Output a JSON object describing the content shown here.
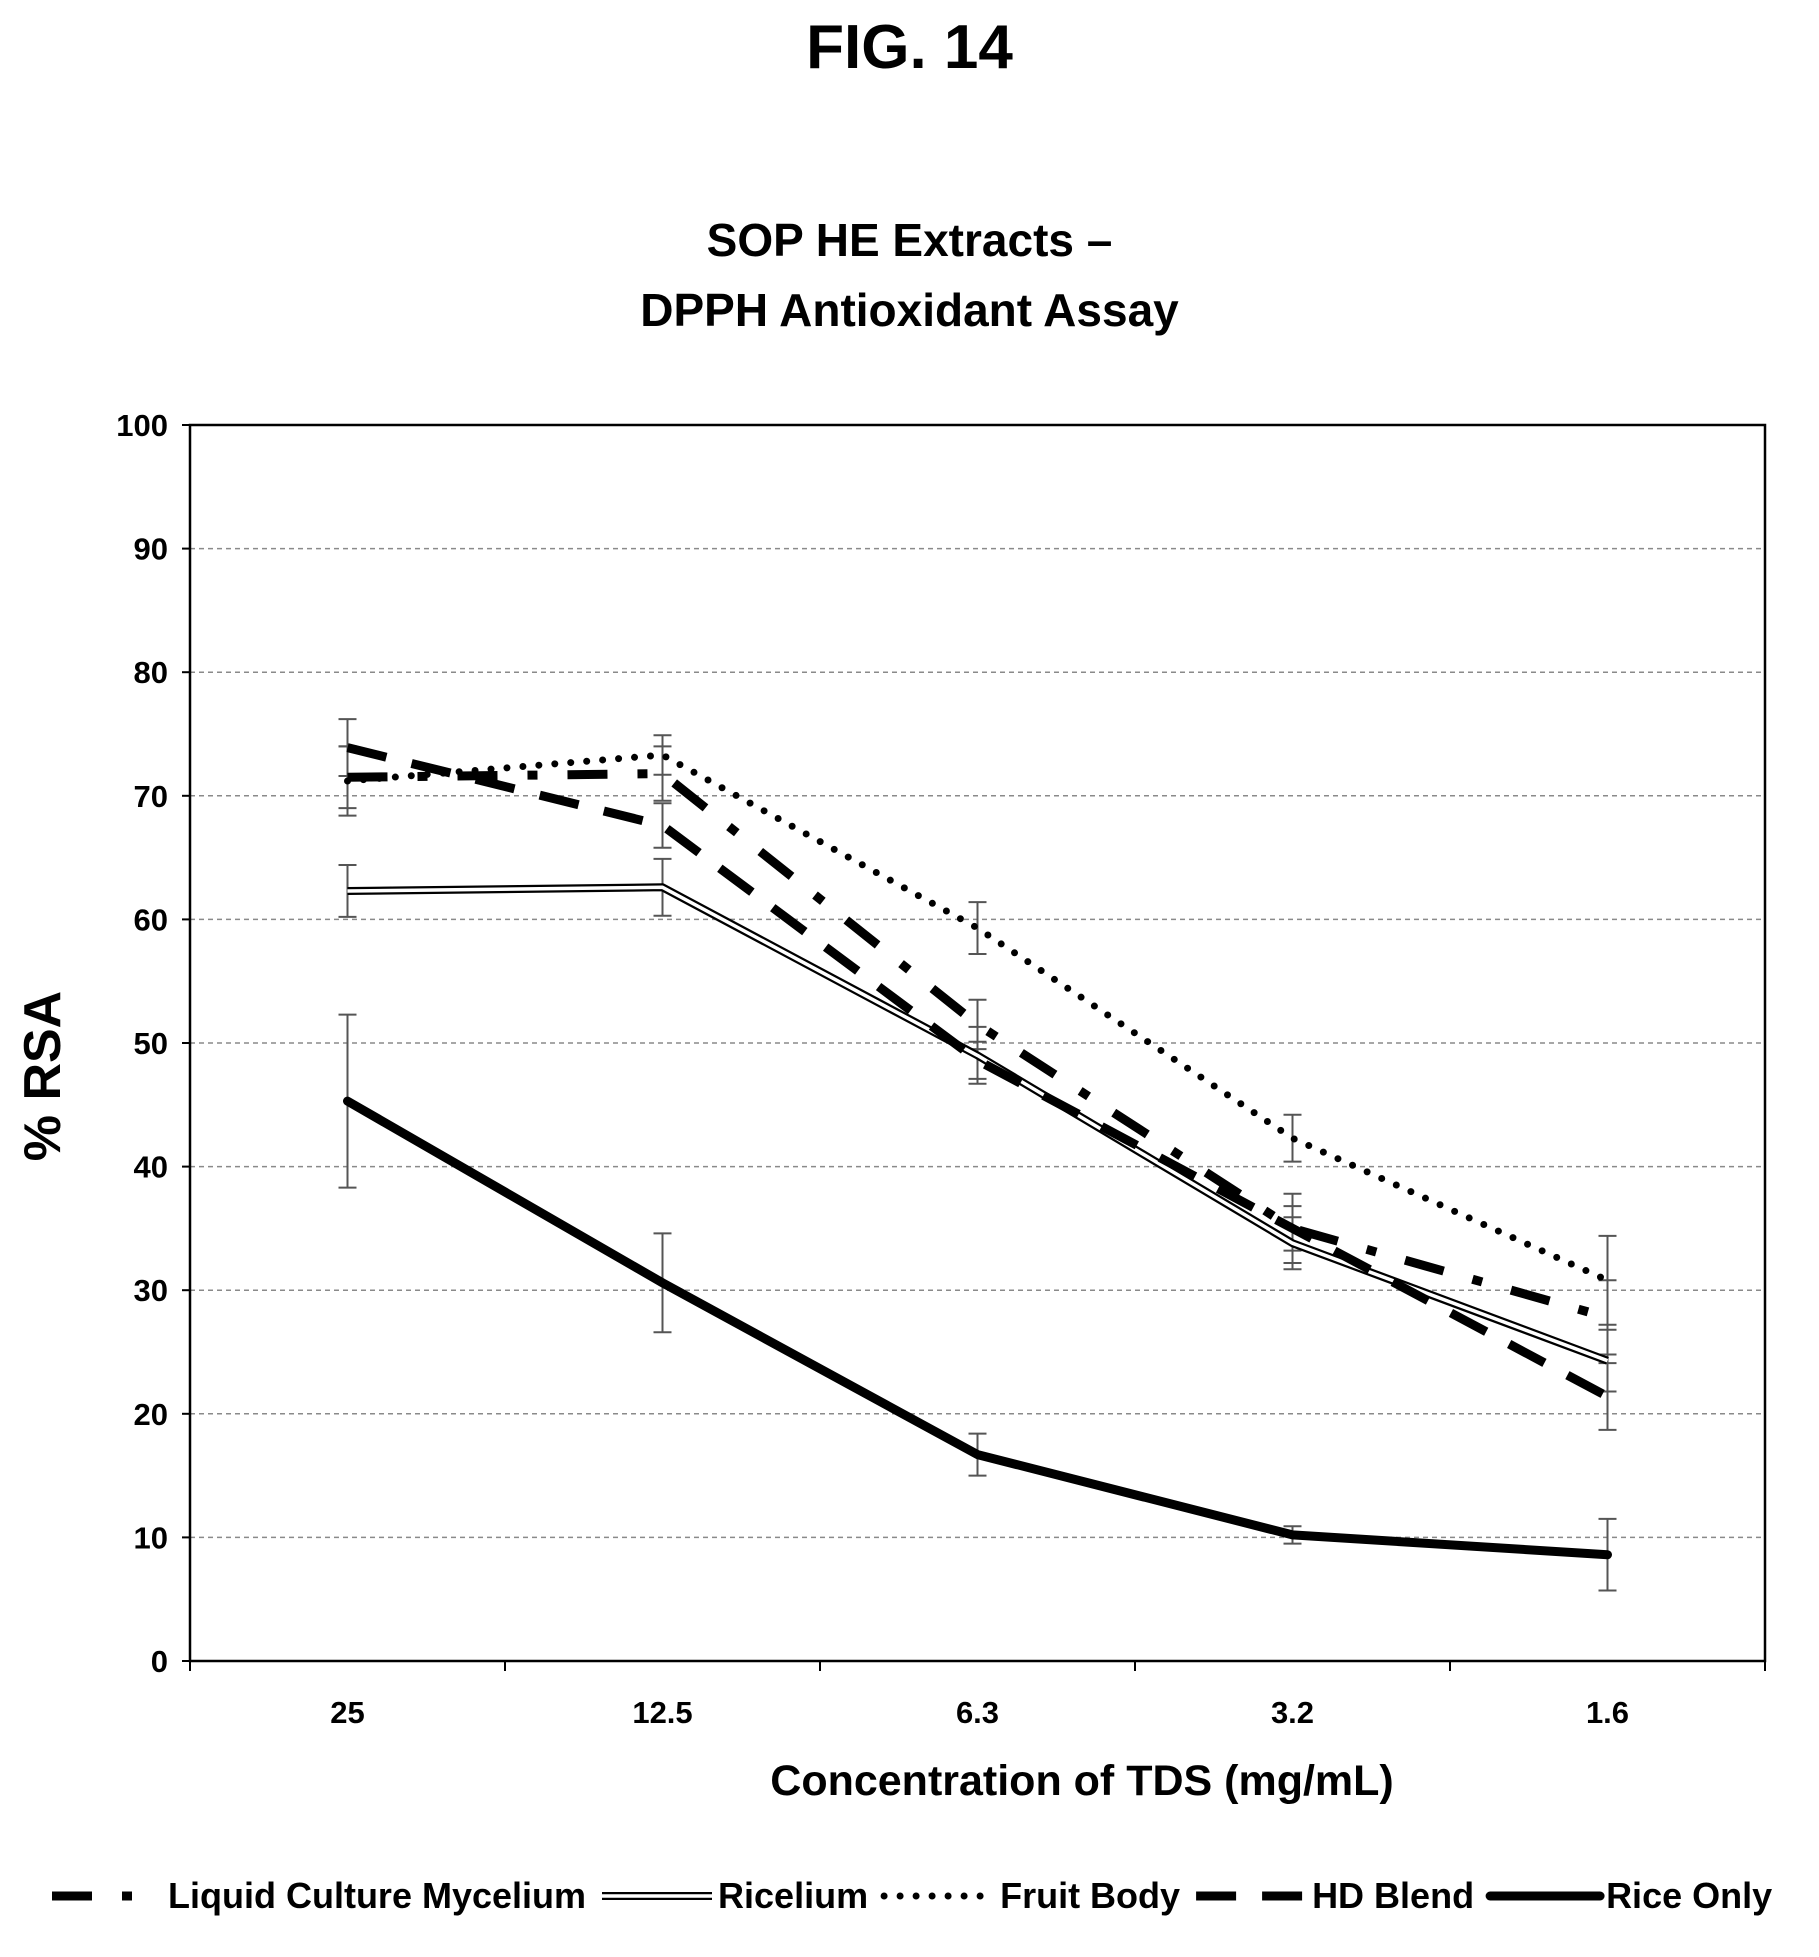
{
  "figure_label": "FIG. 14",
  "chart_data": {
    "type": "line",
    "title": [
      "SOP HE Extracts –",
      "DPPH Antioxidant Assay"
    ],
    "xlabel": "Concentration of TDS (mg/mL)",
    "ylabel": "% RSA",
    "categories": [
      "25",
      "12.5",
      "6.3",
      "3.2",
      "1.6"
    ],
    "ylim": [
      0,
      100
    ],
    "yticks": [
      0,
      10,
      20,
      30,
      40,
      50,
      60,
      70,
      80,
      90,
      100
    ],
    "grid": "horizontal dashed",
    "legend_position": "bottom",
    "series": [
      {
        "name": "Liquid Culture Mycelium",
        "style": "dash-dot",
        "values": [
          71.5,
          71.8,
          51.5,
          35.0,
          27.8
        ],
        "errors": [
          2.5,
          2.2,
          2.0,
          2.8,
          3.0
        ]
      },
      {
        "name": "Ricelium",
        "style": "double",
        "values": [
          62.3,
          62.6,
          49.0,
          33.8,
          24.3
        ],
        "errors": [
          2.1,
          2.3,
          2.3,
          2.1,
          2.5
        ]
      },
      {
        "name": "Fruit Body",
        "style": "dotted",
        "values": [
          71.2,
          73.3,
          59.3,
          42.3,
          30.8
        ],
        "errors": [
          2.8,
          1.6,
          2.1,
          1.9,
          3.6
        ]
      },
      {
        "name": "HD Blend",
        "style": "dashed",
        "values": [
          73.9,
          67.6,
          48.6,
          35.0,
          21.4
        ],
        "errors": [
          2.3,
          1.8,
          1.5,
          1.8,
          2.7
        ]
      },
      {
        "name": "Rice Only",
        "style": "solid-thick",
        "values": [
          45.3,
          30.6,
          16.7,
          10.2,
          8.6
        ],
        "errors": [
          7.0,
          4.0,
          1.7,
          0.7,
          2.9
        ]
      }
    ]
  }
}
